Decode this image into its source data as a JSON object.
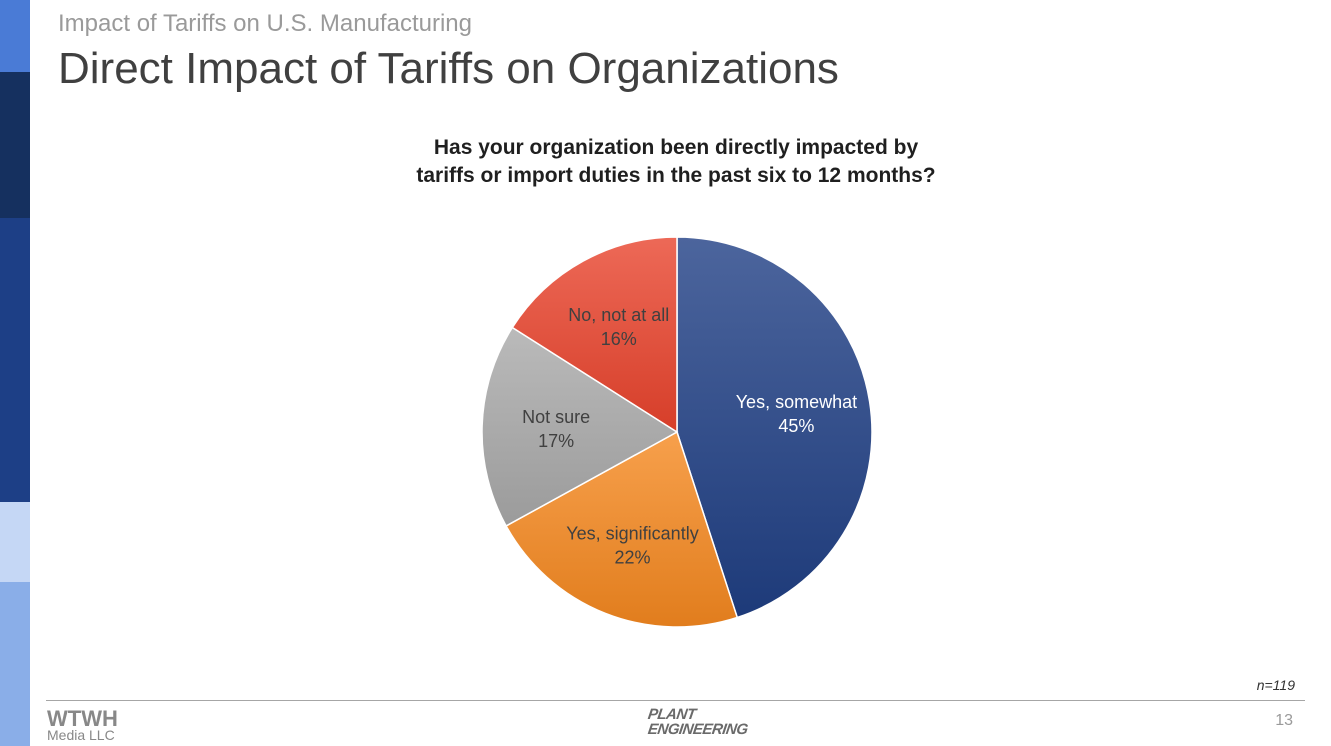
{
  "slide": {
    "subtitle": "Impact of Tariffs on U.S. Manufacturing",
    "title": "Direct Impact of Tariffs on Organizations",
    "sample_size": "n=119",
    "page_number": "13"
  },
  "footer": {
    "left_logo_main": "WTWH",
    "left_logo_sub": "Media LLC",
    "center_logo_line1": "PLANT",
    "center_logo_line2": "ENGINEERING"
  },
  "theme": {
    "sidebar_colors": [
      "#4a7bd6",
      "#15305f",
      "#1d3f86",
      "#c5d7f5",
      "#8aaee8"
    ]
  },
  "chart_data": {
    "type": "pie",
    "title_lines": [
      "Has your organization been directly impacted by",
      "tariffs or import duties in the past six to 12 months?"
    ],
    "slices": [
      {
        "label": "Yes, somewhat",
        "value": 45,
        "value_label": "45%",
        "color": "#1f3f84",
        "label_color": "#ffffff"
      },
      {
        "label": "Yes, significantly",
        "value": 22,
        "value_label": "22%",
        "color": "#f5881f",
        "label_color": "#404040"
      },
      {
        "label": "Not sure",
        "value": 17,
        "value_label": "17%",
        "color": "#a9a9a9",
        "label_color": "#404040"
      },
      {
        "label": "No, not at all",
        "value": 16,
        "value_label": "16%",
        "color": "#e9432d",
        "label_color": "#404040"
      }
    ],
    "start": "12 o'clock",
    "direction": "clockwise"
  }
}
